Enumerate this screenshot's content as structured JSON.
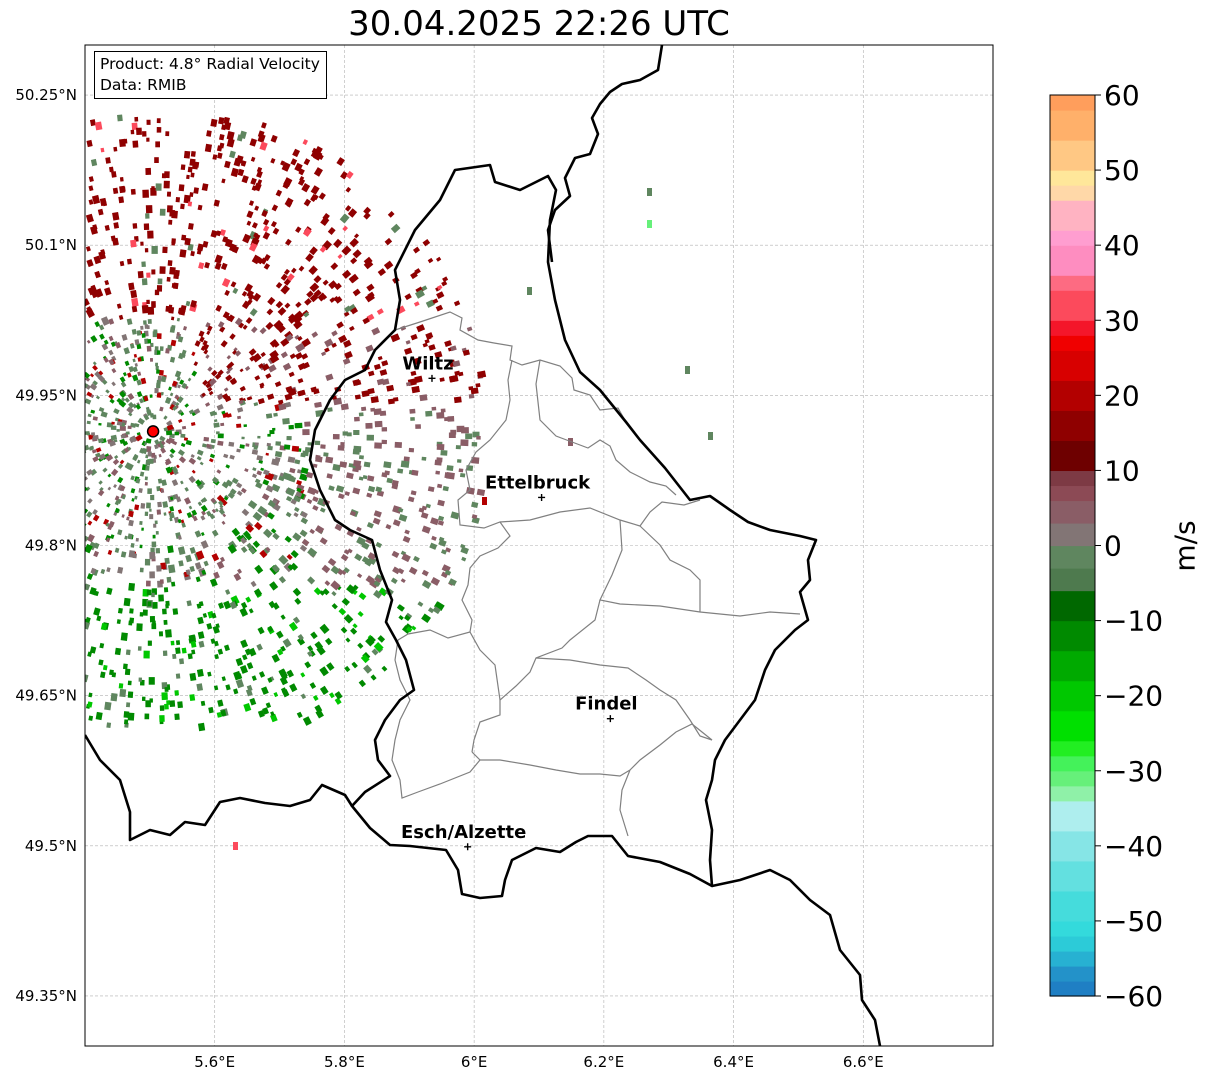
{
  "title": "30.04.2025 22:26 UTC",
  "info": {
    "product_line": "Product: 4.8° Radial Velocity",
    "data_line": "Data: RMIB"
  },
  "map_extent": {
    "lon": [
      5.4,
      6.8
    ],
    "lat": [
      49.3,
      50.3
    ]
  },
  "lat_ticks": [
    {
      "value": 50.25,
      "label": "50.25°N"
    },
    {
      "value": 50.1,
      "label": "50.1°N"
    },
    {
      "value": 49.95,
      "label": "49.95°N"
    },
    {
      "value": 49.8,
      "label": "49.8°N"
    },
    {
      "value": 49.65,
      "label": "49.65°N"
    },
    {
      "value": 49.5,
      "label": "49.5°N"
    },
    {
      "value": 49.35,
      "label": "49.35°N"
    }
  ],
  "lon_ticks": [
    {
      "value": 5.6,
      "label": "5.6°E"
    },
    {
      "value": 5.8,
      "label": "5.8°E"
    },
    {
      "value": 6.0,
      "label": "6°E"
    },
    {
      "value": 6.2,
      "label": "6.2°E"
    },
    {
      "value": 6.4,
      "label": "6.4°E"
    },
    {
      "value": 6.6,
      "label": "6.6°E"
    }
  ],
  "cities": [
    {
      "name": "Wiltz",
      "lon": 5.935,
      "lat": 49.967
    },
    {
      "name": "Ettelbruck",
      "lon": 6.104,
      "lat": 49.848
    },
    {
      "name": "Findel",
      "lon": 6.21,
      "lat": 49.627
    },
    {
      "name": "Esch/Alzette",
      "lon": 5.99,
      "lat": 49.499
    }
  ],
  "radar_site": {
    "lon": 5.505,
    "lat": 49.914
  },
  "colorbar": {
    "unit": "m/s",
    "min": -60,
    "max": 60,
    "ticks": [
      {
        "value": 60,
        "label": "60"
      },
      {
        "value": 50,
        "label": "50"
      },
      {
        "value": 40,
        "label": "40"
      },
      {
        "value": 30,
        "label": "30"
      },
      {
        "value": 20,
        "label": "20"
      },
      {
        "value": 10,
        "label": "10"
      },
      {
        "value": 0,
        "label": "0"
      },
      {
        "value": -10,
        "label": "−10"
      },
      {
        "value": -20,
        "label": "−20"
      },
      {
        "value": -30,
        "label": "−30"
      },
      {
        "value": -40,
        "label": "−40"
      },
      {
        "value": -50,
        "label": "−50"
      },
      {
        "value": -60,
        "label": "−60"
      }
    ],
    "stops": [
      {
        "from": -60,
        "to": -58,
        "color": "#1f7fc4"
      },
      {
        "from": -58,
        "to": -56,
        "color": "#2392c9"
      },
      {
        "from": -56,
        "to": -54,
        "color": "#27b1d2"
      },
      {
        "from": -54,
        "to": -52,
        "color": "#2ccbd8"
      },
      {
        "from": -52,
        "to": -50,
        "color": "#33dadc"
      },
      {
        "from": -50,
        "to": -46,
        "color": "#45dcdc"
      },
      {
        "from": -46,
        "to": -42,
        "color": "#63e0e0"
      },
      {
        "from": -42,
        "to": -38,
        "color": "#86e5e6"
      },
      {
        "from": -38,
        "to": -34,
        "color": "#aeeeee"
      },
      {
        "from": -34,
        "to": -32,
        "color": "#8ff1a8"
      },
      {
        "from": -32,
        "to": -30,
        "color": "#66f07a"
      },
      {
        "from": -30,
        "to": -28,
        "color": "#44f25a"
      },
      {
        "from": -28,
        "to": -26,
        "color": "#22ee22"
      },
      {
        "from": -26,
        "to": -22,
        "color": "#00e000"
      },
      {
        "from": -22,
        "to": -18,
        "color": "#00c800"
      },
      {
        "from": -18,
        "to": -14,
        "color": "#00aa00"
      },
      {
        "from": -14,
        "to": -10,
        "color": "#008a00"
      },
      {
        "from": -10,
        "to": -6,
        "color": "#006800"
      },
      {
        "from": -6,
        "to": -3,
        "color": "#4e7a4e"
      },
      {
        "from": -3,
        "to": 0,
        "color": "#5f865f"
      },
      {
        "from": 0,
        "to": 3,
        "color": "#827575"
      },
      {
        "from": 3,
        "to": 6,
        "color": "#8a5d66"
      },
      {
        "from": 6,
        "to": 8,
        "color": "#8c4a55"
      },
      {
        "from": 8,
        "to": 10,
        "color": "#7d3a44"
      },
      {
        "from": 10,
        "to": 14,
        "color": "#6e0000"
      },
      {
        "from": 14,
        "to": 18,
        "color": "#8f0000"
      },
      {
        "from": 18,
        "to": 22,
        "color": "#b30000"
      },
      {
        "from": 22,
        "to": 26,
        "color": "#d80000"
      },
      {
        "from": 26,
        "to": 28,
        "color": "#f00000"
      },
      {
        "from": 28,
        "to": 30,
        "color": "#f4162a"
      },
      {
        "from": 30,
        "to": 34,
        "color": "#fc4a5c"
      },
      {
        "from": 34,
        "to": 36,
        "color": "#fd6b82"
      },
      {
        "from": 36,
        "to": 40,
        "color": "#fe8dc0"
      },
      {
        "from": 40,
        "to": 42,
        "color": "#ff9ed0"
      },
      {
        "from": 42,
        "to": 46,
        "color": "#ffb3c2"
      },
      {
        "from": 46,
        "to": 48,
        "color": "#ffd8a8"
      },
      {
        "from": 48,
        "to": 50,
        "color": "#ffe79a"
      },
      {
        "from": 50,
        "to": 54,
        "color": "#ffc884"
      },
      {
        "from": 54,
        "to": 58,
        "color": "#ffb06a"
      },
      {
        "from": 58,
        "to": 60,
        "color": "#ff9e5c"
      }
    ]
  },
  "colors": {
    "national_border": "#000000",
    "canton_border": "#808080",
    "grid": "#b0b0b0",
    "radar_site_fill": "#ff0000"
  }
}
